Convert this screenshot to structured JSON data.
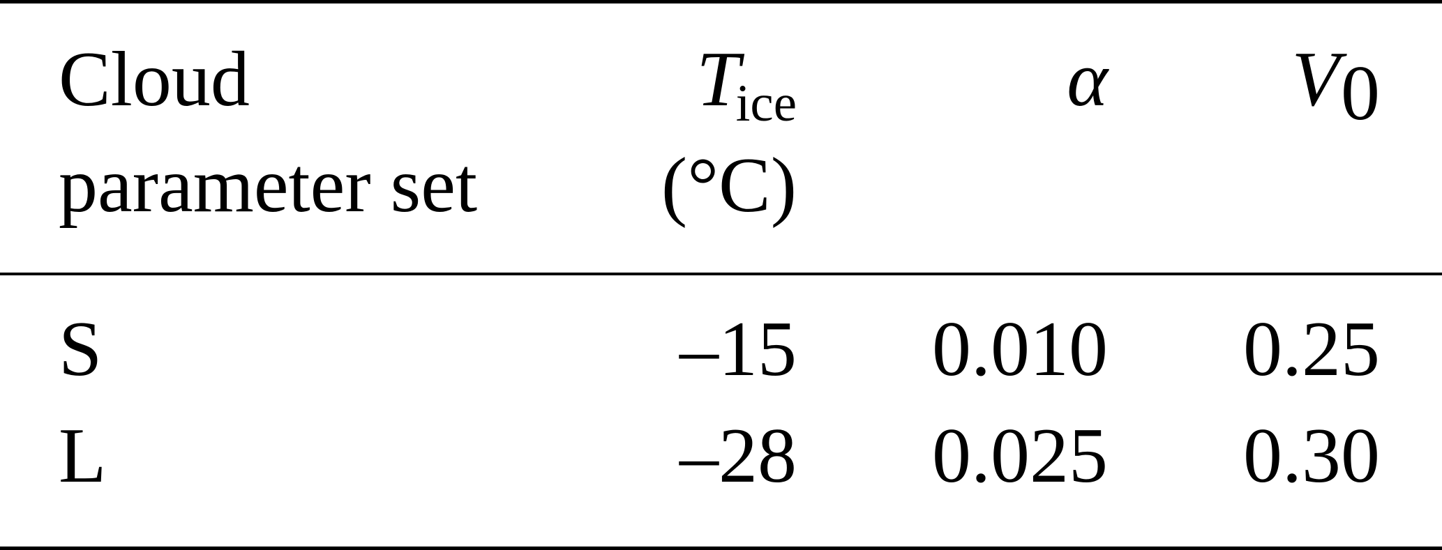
{
  "table": {
    "headers": {
      "param_set_line1": "Cloud",
      "param_set_line2": "parameter set",
      "tice_symbol": "T",
      "tice_subscript": "ice",
      "tice_unit": "(°C)",
      "alpha_symbol": "α",
      "v0_symbol": "V",
      "v0_subscript": "0"
    },
    "rows": [
      {
        "set": "S",
        "tice": "–15",
        "alpha": "0.010",
        "v0": "0.25"
      },
      {
        "set": "L",
        "tice": "–28",
        "alpha": "0.025",
        "v0": "0.30"
      }
    ]
  }
}
